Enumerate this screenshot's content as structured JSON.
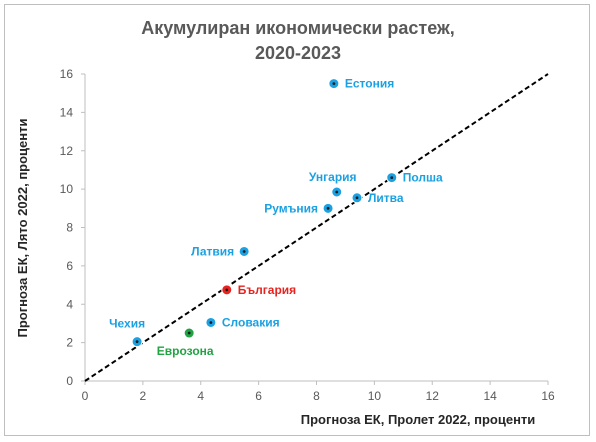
{
  "chart_data": {
    "type": "scatter",
    "title": [
      "Акумулиран икономически растеж,",
      "2020-2023"
    ],
    "xlabel": "Прогноза ЕК, Пролет 2022, проценти",
    "ylabel": "Прогноза ЕК, Лято 2022, проценти",
    "xlim": [
      0,
      16
    ],
    "ylim": [
      0,
      16
    ],
    "xticks": [
      "0",
      "2",
      "4",
      "6",
      "8",
      "10",
      "12",
      "14",
      "16"
    ],
    "yticks": [
      "0",
      "2",
      "4",
      "6",
      "8",
      "10",
      "12",
      "14",
      "16"
    ],
    "grid": false,
    "reference_line": {
      "from": [
        0,
        0
      ],
      "to": [
        16,
        16
      ],
      "style": "dashed",
      "color": "#000000"
    },
    "series": [
      {
        "label": "Естония",
        "x": 8.6,
        "y": 15.5,
        "color": "#1ba1e2",
        "label_pos": "right"
      },
      {
        "label": "Унгария",
        "x": 8.7,
        "y": 9.85,
        "color": "#1ba1e2",
        "label_pos": "above"
      },
      {
        "label": "Полша",
        "x": 10.6,
        "y": 10.6,
        "color": "#1ba1e2",
        "label_pos": "right"
      },
      {
        "label": "Румъния",
        "x": 8.4,
        "y": 9.0,
        "color": "#1ba1e2",
        "label_pos": "left"
      },
      {
        "label": "Литва",
        "x": 9.4,
        "y": 9.55,
        "color": "#1ba1e2",
        "label_pos": "right"
      },
      {
        "label": "Латвия",
        "x": 5.5,
        "y": 6.75,
        "color": "#1ba1e2",
        "label_pos": "left"
      },
      {
        "label": "България",
        "x": 4.9,
        "y": 4.75,
        "color": "#e8231f",
        "label_pos": "right"
      },
      {
        "label": "Словакия",
        "x": 4.35,
        "y": 3.05,
        "color": "#1ba1e2",
        "label_pos": "right"
      },
      {
        "label": "Чехия",
        "x": 1.8,
        "y": 2.05,
        "color": "#1ba1e2",
        "label_pos": "above-left"
      },
      {
        "label": "Еврозона",
        "x": 3.6,
        "y": 2.5,
        "color": "#21a243",
        "label_pos": "below"
      }
    ]
  }
}
